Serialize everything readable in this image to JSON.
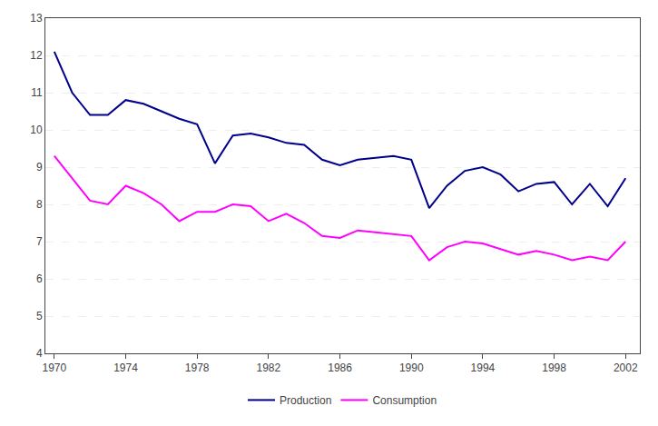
{
  "chart_data": {
    "type": "line",
    "x": [
      1970,
      1971,
      1972,
      1973,
      1974,
      1975,
      1976,
      1977,
      1978,
      1979,
      1980,
      1981,
      1982,
      1983,
      1984,
      1985,
      1986,
      1987,
      1988,
      1989,
      1990,
      1991,
      1992,
      1993,
      1994,
      1995,
      1996,
      1997,
      1998,
      1999,
      2000,
      2001,
      2002
    ],
    "series": [
      {
        "name": "Production",
        "color": "#00008B",
        "values": [
          12.1,
          11.0,
          10.4,
          10.4,
          10.8,
          10.7,
          10.5,
          10.3,
          10.15,
          9.1,
          9.85,
          9.9,
          9.8,
          9.65,
          9.6,
          9.2,
          9.05,
          9.2,
          9.25,
          9.3,
          9.2,
          7.9,
          8.5,
          8.9,
          9.0,
          8.8,
          8.35,
          8.55,
          8.6,
          8.0,
          8.55,
          7.95,
          8.7
        ]
      },
      {
        "name": "Consumption",
        "color": "#FF00FF",
        "values": [
          9.3,
          8.7,
          8.1,
          8.0,
          8.5,
          8.3,
          8.0,
          7.55,
          7.8,
          7.8,
          8.0,
          7.95,
          7.55,
          7.75,
          7.5,
          7.15,
          7.1,
          7.3,
          7.25,
          7.2,
          7.15,
          6.5,
          6.85,
          7.0,
          6.95,
          6.8,
          6.65,
          6.75,
          6.65,
          6.5,
          6.6,
          6.5,
          7.0
        ]
      }
    ],
    "xlim": [
      1969.5,
      2002.8
    ],
    "xticks": [
      1970,
      1974,
      1978,
      1982,
      1986,
      1990,
      1994,
      1998,
      2002
    ],
    "ylim": [
      4,
      13
    ],
    "yticks": [
      4,
      5,
      6,
      7,
      8,
      9,
      10,
      11,
      12,
      13
    ],
    "grid": true,
    "legend": "bottom"
  }
}
